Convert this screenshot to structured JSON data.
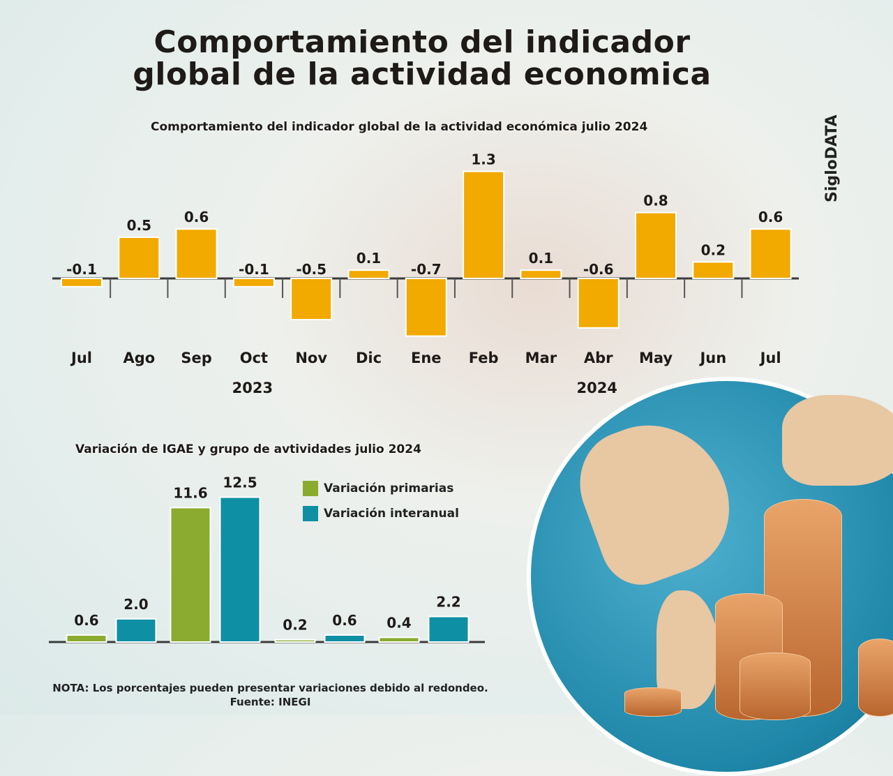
{
  "title_line1": "Comportamiento del indicador",
  "title_line2": "global de la actividad economica",
  "brand": "SigloDATA",
  "chart_data": [
    {
      "type": "bar",
      "title": "Comportamiento del indicador global de la actividad económica julio 2024",
      "categories": [
        "Jul",
        "Ago",
        "Sep",
        "Oct",
        "Nov",
        "Dic",
        "Ene",
        "Feb",
        "Mar",
        "Abr",
        "May",
        "Jun",
        "Jul"
      ],
      "values": [
        -0.1,
        0.5,
        0.6,
        -0.1,
        -0.5,
        0.1,
        -0.7,
        1.3,
        0.1,
        -0.6,
        0.8,
        0.2,
        0.6
      ],
      "value_labels": [
        "-0.1",
        "0.5",
        "0.6",
        "-0.1",
        "-0.5",
        "0.1",
        "-0.7",
        "1.3",
        "0.1",
        "-0.6",
        "0.8",
        "0.2",
        "0.6"
      ],
      "year_labels": [
        "2023",
        "2024"
      ],
      "color": "#f2a900",
      "grid": false
    },
    {
      "type": "bar",
      "title": "Variación de IGAE y grupo de avtividades julio 2024",
      "series": [
        {
          "name": "Variación primarias",
          "color": "#8aab2f",
          "values": [
            0.6,
            11.6,
            0.2,
            0.4
          ],
          "labels": [
            "0.6",
            "11.6",
            "0.2",
            "0.4"
          ]
        },
        {
          "name": "Variación interanual",
          "color": "#0f8fa3",
          "values": [
            2.0,
            12.5,
            0.6,
            2.2
          ],
          "labels": [
            "2.0",
            "12.5",
            "0.6",
            "2.2"
          ]
        }
      ],
      "legend": "top-right",
      "grid": false
    }
  ],
  "note": "NOTA: Los porcentajes pueden presentar variaciones debido al redondeo.",
  "source": "Fuente: INEGI"
}
